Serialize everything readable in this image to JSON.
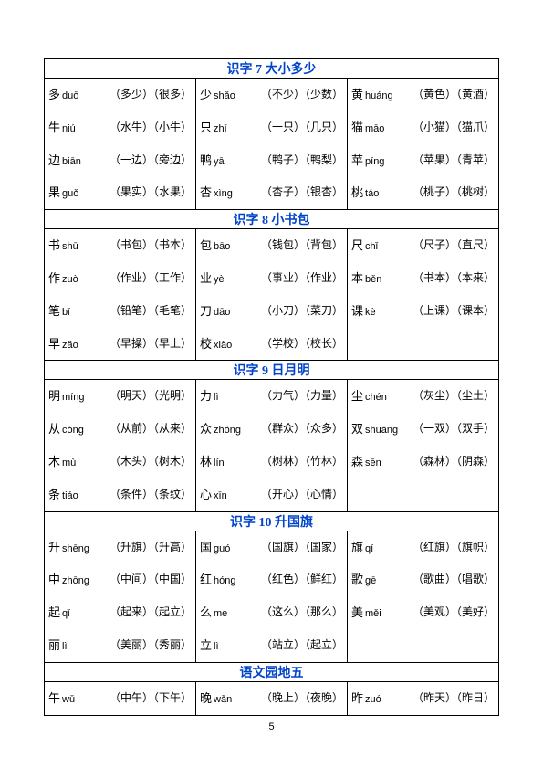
{
  "page_number": "5",
  "colors": {
    "title_color": "#0044cc",
    "border_color": "#000000",
    "background": "#ffffff",
    "text_color": "#000000"
  },
  "fonts": {
    "body": "KaiTi",
    "pinyin": "Arial",
    "title_size": 14,
    "entry_size": 12
  },
  "sections": [
    {
      "title": "识字 7  大小多少",
      "rows": [
        [
          {
            "char": "多",
            "pinyin": "duō",
            "w1": "（多少）",
            "w2": "（很多）"
          },
          {
            "char": "少",
            "pinyin": "shǎo",
            "w1": "（不少）",
            "w2": "（少数）"
          },
          {
            "char": "黄",
            "pinyin": "huáng",
            "w1": "（黄色）",
            "w2": "（黄酒）"
          }
        ],
        [
          {
            "char": "牛",
            "pinyin": "niú",
            "w1": "（水牛）",
            "w2": "（小牛）"
          },
          {
            "char": "只",
            "pinyin": "zhī",
            "w1": "（一只）",
            "w2": "（几只）"
          },
          {
            "char": "猫",
            "pinyin": "māo",
            "w1": "（小猫）",
            "w2": "（猫爪）"
          }
        ],
        [
          {
            "char": "边",
            "pinyin": "biān",
            "w1": "（一边）",
            "w2": "（旁边）"
          },
          {
            "char": "鸭",
            "pinyin": "yā",
            "w1": "（鸭子）",
            "w2": "（鸭梨）"
          },
          {
            "char": "苹",
            "pinyin": "píng",
            "w1": "（苹果）",
            "w2": "（青苹）"
          }
        ],
        [
          {
            "char": "果",
            "pinyin": "guǒ",
            "w1": "（果实）",
            "w2": "（水果）"
          },
          {
            "char": "杏",
            "pinyin": "xìng",
            "w1": "（杏子）",
            "w2": "（银杏）"
          },
          {
            "char": "桃",
            "pinyin": "táo",
            "w1": "（桃子）",
            "w2": "（桃树）"
          }
        ]
      ]
    },
    {
      "title": "识字 8  小书包",
      "rows": [
        [
          {
            "char": "书",
            "pinyin": "shū",
            "w1": "（书包）",
            "w2": "（书本）"
          },
          {
            "char": "包",
            "pinyin": "bāo",
            "w1": "（钱包）",
            "w2": "（背包）"
          },
          {
            "char": "尺",
            "pinyin": "chǐ",
            "w1": "（尺子）",
            "w2": "（直尺）"
          }
        ],
        [
          {
            "char": "作",
            "pinyin": "zuò",
            "w1": "（作业）",
            "w2": "（工作）"
          },
          {
            "char": "业",
            "pinyin": "yè",
            "w1": "（事业）",
            "w2": "（作业）"
          },
          {
            "char": "本",
            "pinyin": "běn",
            "w1": "（书本）",
            "w2": "（本来）"
          }
        ],
        [
          {
            "char": "笔",
            "pinyin": "bǐ",
            "w1": "（铅笔）",
            "w2": "（毛笔）"
          },
          {
            "char": "刀",
            "pinyin": "dāo",
            "w1": "（小刀）",
            "w2": "（菜刀）"
          },
          {
            "char": "课",
            "pinyin": "kè",
            "w1": "（上课）",
            "w2": "（课本）"
          }
        ],
        [
          {
            "char": "早",
            "pinyin": "zǎo",
            "w1": "（早操）",
            "w2": "（早上）"
          },
          {
            "char": "校",
            "pinyin": "xiào",
            "w1": "（学校）",
            "w2": "（校长）"
          },
          null
        ]
      ]
    },
    {
      "title": "识字 9  日月明",
      "rows": [
        [
          {
            "char": "明",
            "pinyin": "míng",
            "w1": "（明天）",
            "w2": "（光明）"
          },
          {
            "char": "力",
            "pinyin": "lì",
            "w1": "（力气）",
            "w2": "（力量）"
          },
          {
            "char": "尘",
            "pinyin": "chén",
            "w1": "（灰尘）",
            "w2": "（尘土）"
          }
        ],
        [
          {
            "char": "从",
            "pinyin": "cóng",
            "w1": "（从前）",
            "w2": "（从来）"
          },
          {
            "char": "众",
            "pinyin": "zhòng",
            "w1": "（群众）",
            "w2": "（众多）"
          },
          {
            "char": "双",
            "pinyin": "shuāng",
            "w1": "（一双）",
            "w2": "（双手）"
          }
        ],
        [
          {
            "char": "木",
            "pinyin": "mù",
            "w1": "（木头）",
            "w2": "（树木）"
          },
          {
            "char": "林",
            "pinyin": "lín",
            "w1": "（树林）",
            "w2": "（竹林）"
          },
          {
            "char": "森",
            "pinyin": "sēn",
            "w1": "（森林）",
            "w2": "（阴森）"
          }
        ],
        [
          {
            "char": "条",
            "pinyin": "tiáo",
            "w1": "（条件）",
            "w2": "（条纹）"
          },
          {
            "char": "心",
            "pinyin": "xīn",
            "w1": "（开心）",
            "w2": "（心情）"
          },
          null
        ]
      ]
    },
    {
      "title": "识字 10  升国旗",
      "rows": [
        [
          {
            "char": "升",
            "pinyin": "shēng",
            "w1": "（升旗）",
            "w2": "（升高）"
          },
          {
            "char": "国",
            "pinyin": "guó",
            "w1": "（国旗）",
            "w2": "（国家）"
          },
          {
            "char": "旗",
            "pinyin": "qí",
            "w1": "（红旗）",
            "w2": "（旗帜）"
          }
        ],
        [
          {
            "char": "中",
            "pinyin": "zhōng",
            "w1": "（中间）",
            "w2": "（中国）"
          },
          {
            "char": "红",
            "pinyin": "hóng",
            "w1": "（红色）",
            "w2": "（鲜红）"
          },
          {
            "char": "歌",
            "pinyin": "gē",
            "w1": "（歌曲）",
            "w2": "（唱歌）"
          }
        ],
        [
          {
            "char": "起",
            "pinyin": "qǐ",
            "w1": "（起来）",
            "w2": "（起立）"
          },
          {
            "char": "么",
            "pinyin": "me",
            "w1": "（这么）",
            "w2": "（那么）"
          },
          {
            "char": "美",
            "pinyin": "měi",
            "w1": "（美观）",
            "w2": "（美好）"
          }
        ],
        [
          {
            "char": "丽",
            "pinyin": "lì",
            "w1": "（美丽）",
            "w2": "（秀丽）"
          },
          {
            "char": "立",
            "pinyin": "lì",
            "w1": "（站立）",
            "w2": "（起立）"
          },
          null
        ]
      ]
    },
    {
      "title": "语文园地五",
      "rows": [
        [
          {
            "char": "午",
            "pinyin": "wǔ",
            "w1": "（中午）",
            "w2": "（下午）"
          },
          {
            "char": "晚",
            "pinyin": "wǎn",
            "w1": "（晚上）",
            "w2": "（夜晚）"
          },
          {
            "char": "昨",
            "pinyin": "zuó",
            "w1": "（昨天）",
            "w2": "（昨日）"
          }
        ]
      ]
    }
  ]
}
